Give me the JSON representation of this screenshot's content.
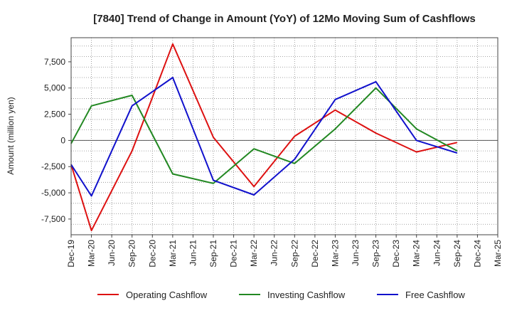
{
  "chart_data": {
    "type": "line",
    "title": "[7840]  Trend of Change in Amount (YoY) of 12Mo Moving Sum of Cashflows",
    "xlabel": "",
    "ylabel": "Amount (million yen)",
    "ylim": [
      -9000,
      9800
    ],
    "yticks": [
      7500,
      5000,
      2500,
      0,
      -2500,
      -5000,
      -7500
    ],
    "ytick_labels": [
      "7,500",
      "5,000",
      "2,500",
      "0",
      "-2,500",
      "-5,000",
      "-7,500"
    ],
    "categories": [
      "Dec-19",
      "Mar-20",
      "Jun-20",
      "Sep-20",
      "Dec-20",
      "Mar-21",
      "Jun-21",
      "Sep-21",
      "Dec-21",
      "Mar-22",
      "Jun-22",
      "Sep-22",
      "Dec-22",
      "Mar-23",
      "Jun-23",
      "Sep-23",
      "Dec-23",
      "Mar-24",
      "Jun-24",
      "Sep-24",
      "Dec-24",
      "Mar-25"
    ],
    "grid": true,
    "legend_position": "bottom",
    "series": [
      {
        "name": "Operating Cashflow",
        "color": "#dd1111",
        "values": [
          -2300,
          -8600,
          null,
          -1000,
          null,
          9200,
          null,
          300,
          null,
          -4400,
          null,
          400,
          null,
          2900,
          null,
          700,
          null,
          -1100,
          null,
          -200,
          null,
          null
        ]
      },
      {
        "name": "Investing Cashflow",
        "color": "#228822",
        "values": [
          -300,
          3300,
          null,
          4300,
          null,
          -3200,
          null,
          -4100,
          null,
          -800,
          null,
          -2200,
          null,
          1100,
          null,
          5000,
          null,
          1100,
          null,
          -1000,
          null,
          null
        ]
      },
      {
        "name": "Free Cashflow",
        "color": "#1111cc",
        "values": [
          -2300,
          -5300,
          null,
          3300,
          null,
          6000,
          null,
          -3800,
          null,
          -5200,
          null,
          -1800,
          null,
          3900,
          null,
          5600,
          null,
          0,
          null,
          -1200,
          null,
          null
        ]
      }
    ]
  }
}
